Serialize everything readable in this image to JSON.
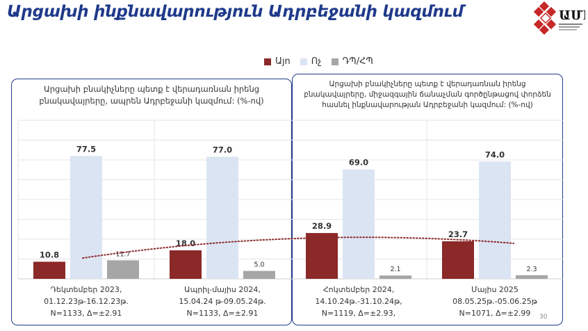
{
  "page": {
    "title": "Արցախի ինքնավարություն Ադրբեջանի կազմում",
    "page_number": "30"
  },
  "colors": {
    "yes": "#8b2828",
    "no": "#dbe4f3",
    "dk": "#a6a6a6",
    "accent": "#1f3a8a",
    "trend": "#8b2828"
  },
  "legend": [
    {
      "label": "Այո",
      "color": "#8b2828"
    },
    {
      "label": "Ոչ",
      "color": "#dbe4f3"
    },
    {
      "label": "ԴՊ/ՀՊ",
      "color": "#a6a6a6"
    }
  ],
  "panels": [
    {
      "title": "Արցախի բնակիչները պետք է վերադառնան իրենց բնակավայրերը, ապրեն Ադրբեջանի կազմում: (%-ով)"
    },
    {
      "title": "Արցախի բնակիչները պետք է վերադառնան իրենց բնակավայրերը, միջազգային ճանաչման գործընթացով փորձեն հասնել ինքնավարության Ադրբեջանի կազմում: (%-ով)"
    }
  ],
  "chart_data": {
    "type": "bar",
    "ylim": [
      0,
      100
    ],
    "grid": true,
    "legend_position": "top",
    "categories": [
      [
        "Դեկտեմբեր 2023,",
        "01.12.23թ-16.12.23թ.",
        "N=1133, Δ=±2.91"
      ],
      [
        "Ապրիլ-մայիս 2024,",
        "15.04.24 թ-09.05.24թ.",
        "N=1133, Δ=±2.91"
      ],
      [
        "Հոկտեմբեր 2024,",
        "14.10.24թ.-31.10.24թ,",
        "N=1119, Δ=±2.93,"
      ],
      [
        "Մայիս 2025",
        "08.05.25թ.-05.06.25թ",
        "N=1071, Δ=±2.99"
      ]
    ],
    "series": [
      {
        "name": "Այո",
        "values": [
          10.8,
          18.0,
          28.9,
          23.7
        ],
        "labels": [
          "10.8",
          "18.0",
          "28.9",
          "23.7"
        ]
      },
      {
        "name": "Ոչ",
        "values": [
          77.5,
          77.0,
          69.0,
          74.0
        ],
        "labels": [
          "77.5",
          "77.0",
          "69.0",
          "74.0"
        ]
      },
      {
        "name": "ԴՊ/ՀՊ",
        "values": [
          11.7,
          5.0,
          2.1,
          2.3
        ],
        "labels": [
          "11.7",
          "5.0",
          "2.1",
          "2.3"
        ]
      }
    ],
    "trendline": "polynomial trend over Այո series (dotted)"
  }
}
